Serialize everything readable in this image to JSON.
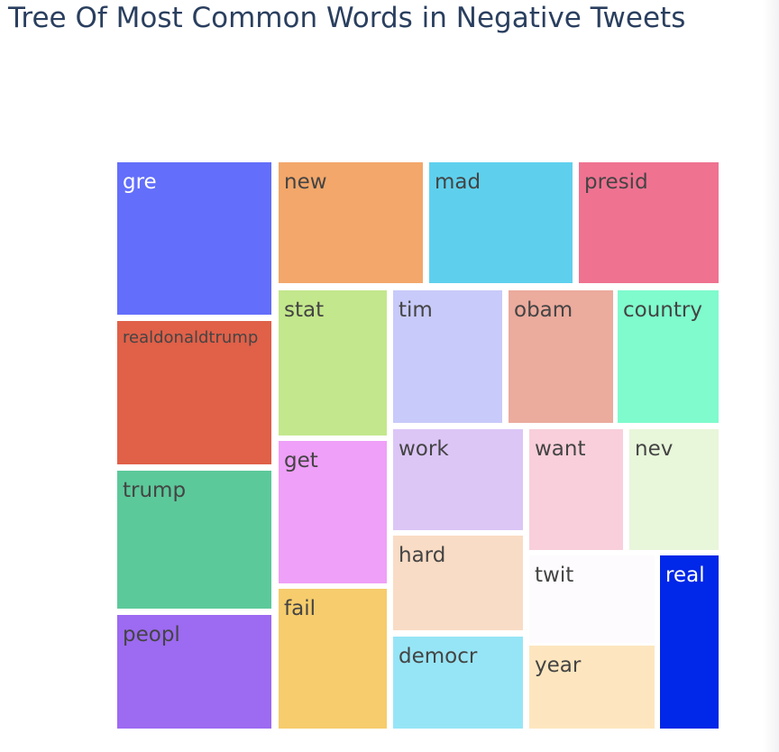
{
  "title": "Tree Of Most Common Words in Negative Tweets",
  "chart_data": {
    "type": "treemap",
    "title": "Tree Of Most Common Words in Negative Tweets",
    "items": [
      {
        "label": "gre",
        "color": "#636efa",
        "text_color": "#ffffff"
      },
      {
        "label": "realdonaldtrump",
        "color": "#e06048",
        "text_color": "#444444"
      },
      {
        "label": "trump",
        "color": "#5cc99a",
        "text_color": "#444444"
      },
      {
        "label": "peopl",
        "color": "#9d6af2",
        "text_color": "#444444"
      },
      {
        "label": "new",
        "color": "#f3a76a",
        "text_color": "#444444"
      },
      {
        "label": "mad",
        "color": "#5ed0ee",
        "text_color": "#444444"
      },
      {
        "label": "presid",
        "color": "#ef7291",
        "text_color": "#444444"
      },
      {
        "label": "stat",
        "color": "#c3e78c",
        "text_color": "#444444"
      },
      {
        "label": "get",
        "color": "#efa0f8",
        "text_color": "#444444"
      },
      {
        "label": "fail",
        "color": "#f6cc6c",
        "text_color": "#444444"
      },
      {
        "label": "tim",
        "color": "#c8caf9",
        "text_color": "#444444"
      },
      {
        "label": "obam",
        "color": "#ebab9d",
        "text_color": "#444444"
      },
      {
        "label": "country",
        "color": "#7ffbcd",
        "text_color": "#444444"
      },
      {
        "label": "work",
        "color": "#dcc6f6",
        "text_color": "#444444"
      },
      {
        "label": "hard",
        "color": "#f9dcc5",
        "text_color": "#444444"
      },
      {
        "label": "democr",
        "color": "#96e5f6",
        "text_color": "#444444"
      },
      {
        "label": "want",
        "color": "#f8cfdb",
        "text_color": "#444444"
      },
      {
        "label": "nev",
        "color": "#e8f6da",
        "text_color": "#444444"
      },
      {
        "label": "twit",
        "color": "#fdfbfe",
        "text_color": "#444444"
      },
      {
        "label": "year",
        "color": "#fde6bf",
        "text_color": "#444444"
      },
      {
        "label": "real",
        "color": "#0127e8",
        "text_color": "#ffffff"
      }
    ]
  }
}
